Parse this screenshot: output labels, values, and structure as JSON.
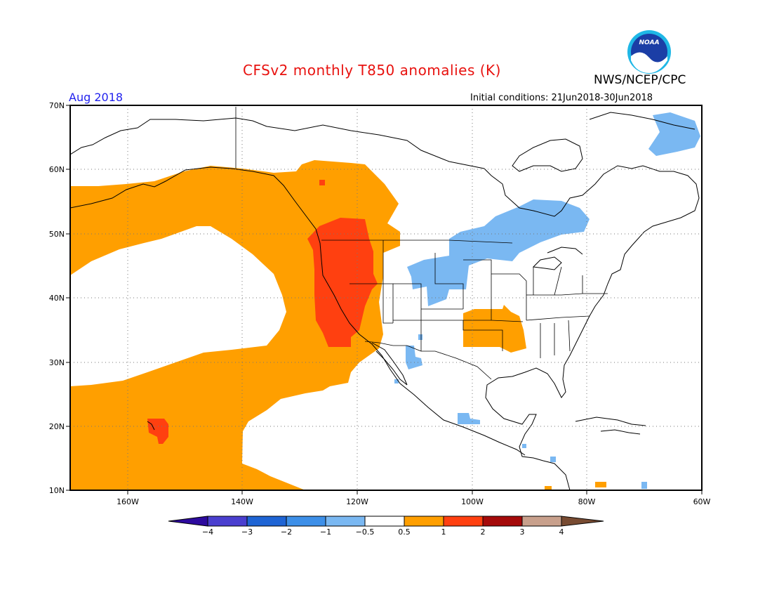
{
  "header": {
    "title": "CFSv2 monthly T850 anomalies (K)",
    "agency": "NWS/NCEP/CPC",
    "logo_text": "NOAA",
    "month": "Aug 2018",
    "initial_conditions": "Initial conditions: 21Jun2018-30Jun2018"
  },
  "map": {
    "lat_labels": [
      "70N",
      "60N",
      "50N",
      "40N",
      "30N",
      "20N",
      "10N"
    ],
    "lon_labels": [
      "160W",
      "140W",
      "120W",
      "100W",
      "80W",
      "60W"
    ],
    "region": "North Pacific and North America",
    "anomaly_regions": [
      {
        "label": "Pacific / West Coast warm band",
        "category": "0.5 to 1"
      },
      {
        "label": "Pacific Northwest",
        "category": "1 to 2"
      },
      {
        "label": "Hawaii",
        "category": "1 to 2"
      },
      {
        "label": "Southern Plains",
        "category": "0.5 to 1"
      },
      {
        "label": "Northern Plains / Canada",
        "category": "-1 to -0.5"
      },
      {
        "label": "Northwest Mexico",
        "category": "-1 to -0.5"
      },
      {
        "label": "Southern Mexico",
        "category": "-1 to -0.5"
      },
      {
        "label": "Labrador Sea",
        "category": "-1 to -0.5"
      }
    ]
  },
  "colorbar": {
    "labels": [
      "-4",
      "-3",
      "-2",
      "-1",
      "-0.5",
      "0.5",
      "1",
      "2",
      "3",
      "4"
    ],
    "colors": [
      "#2d0a9e",
      "#4a3fcf",
      "#1e64d4",
      "#3d8fe8",
      "#7ab8f2",
      "#ffffff",
      "#ff9f00",
      "#ff4010",
      "#a50a0a",
      "#c8a08c",
      "#784b32"
    ]
  }
}
